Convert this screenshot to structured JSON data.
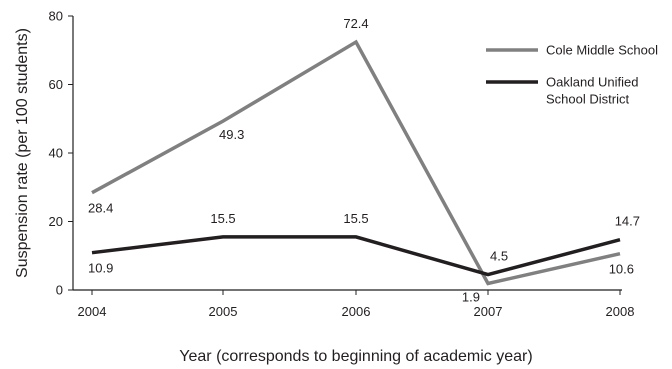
{
  "chart_data": {
    "type": "line",
    "x": [
      2004,
      2005,
      2006,
      2007,
      2008
    ],
    "x_tick_labels": [
      "2004",
      "2005",
      "2006",
      "2007",
      "2008"
    ],
    "y_ticks": [
      0,
      20,
      40,
      60,
      80
    ],
    "y_tick_labels": [
      "0",
      "20",
      "40",
      "60",
      "80"
    ],
    "ylim": [
      0,
      80
    ],
    "xlabel": "Year (corresponds to beginning of academic year)",
    "ylabel": "Suspension rate (per 100 students)",
    "grid": false,
    "legend_position": "top-right",
    "series": [
      {
        "name": "Cole Middle School",
        "legend_lines": [
          "Cole Middle School"
        ],
        "color": "#808080",
        "values": [
          28.4,
          49.3,
          72.4,
          1.9,
          10.6
        ],
        "labels": [
          "28.4",
          "49.3",
          "72.4",
          "1.9",
          "10.6"
        ]
      },
      {
        "name": "Oakland Unified School District",
        "legend_lines": [
          "Oakland Unified",
          "School District"
        ],
        "color": "#231f20",
        "values": [
          10.9,
          15.5,
          15.5,
          4.5,
          14.7
        ],
        "labels": [
          "10.9",
          "15.5",
          "15.5",
          "4.5",
          "14.7"
        ]
      }
    ]
  }
}
